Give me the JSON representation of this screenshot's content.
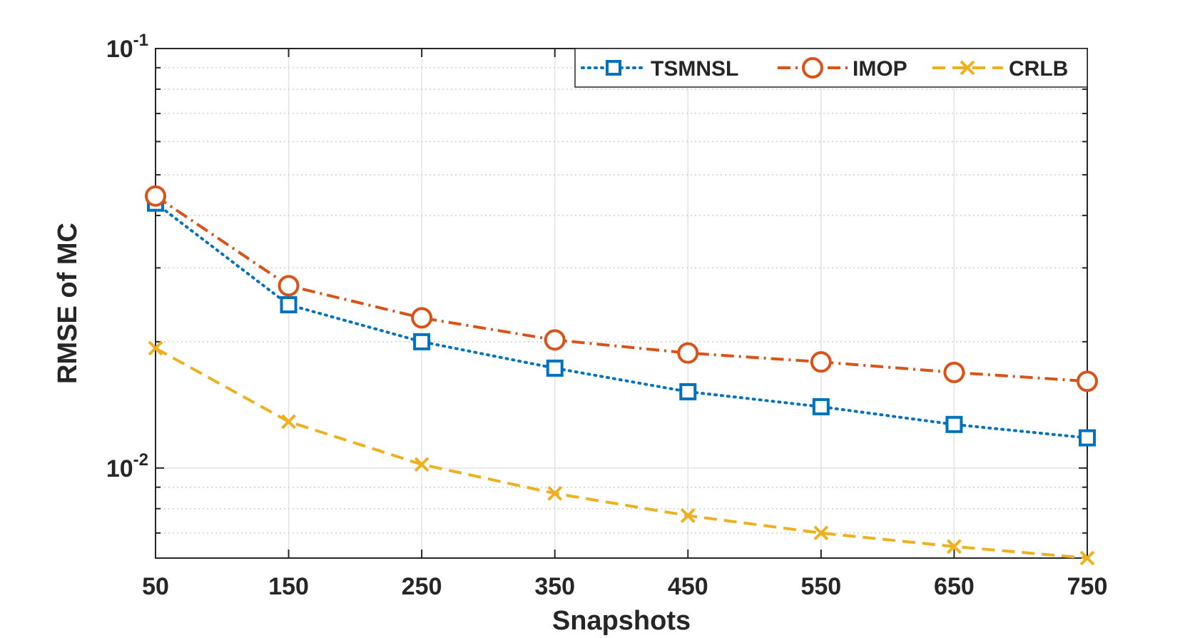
{
  "chart_data": {
    "type": "line",
    "title": "",
    "xlabel": "Snapshots",
    "ylabel": "RMSE of MC",
    "x": [
      50,
      150,
      250,
      350,
      450,
      550,
      650,
      750
    ],
    "xticks": [
      "50",
      "150",
      "250",
      "350",
      "450",
      "550",
      "650",
      "750"
    ],
    "xlim": [
      50,
      750
    ],
    "yscale": "log",
    "ylim": [
      0.0061,
      0.1
    ],
    "yticks": [
      {
        "base": "10",
        "exp": "-2",
        "value": 0.01
      },
      {
        "base": "10",
        "exp": "-1",
        "value": 0.1
      }
    ],
    "grid": true,
    "legend_position": "top-right",
    "series": [
      {
        "name": "TSMNSL",
        "color": "#0072BD",
        "line_style": "dotted",
        "marker": "square",
        "values": [
          0.0428,
          0.0245,
          0.02,
          0.0173,
          0.0152,
          0.014,
          0.0127,
          0.0118
        ]
      },
      {
        "name": "IMOP",
        "color": "#D95319",
        "line_style": "dash-dot",
        "marker": "circle",
        "values": [
          0.0445,
          0.0272,
          0.0228,
          0.0202,
          0.0188,
          0.0179,
          0.0169,
          0.0161
        ]
      },
      {
        "name": "CRLB",
        "color": "#EDB120",
        "line_style": "dashed",
        "marker": "x",
        "values": [
          0.0193,
          0.0129,
          0.0102,
          0.0087,
          0.0077,
          0.007,
          0.0065,
          0.0061
        ]
      }
    ]
  }
}
